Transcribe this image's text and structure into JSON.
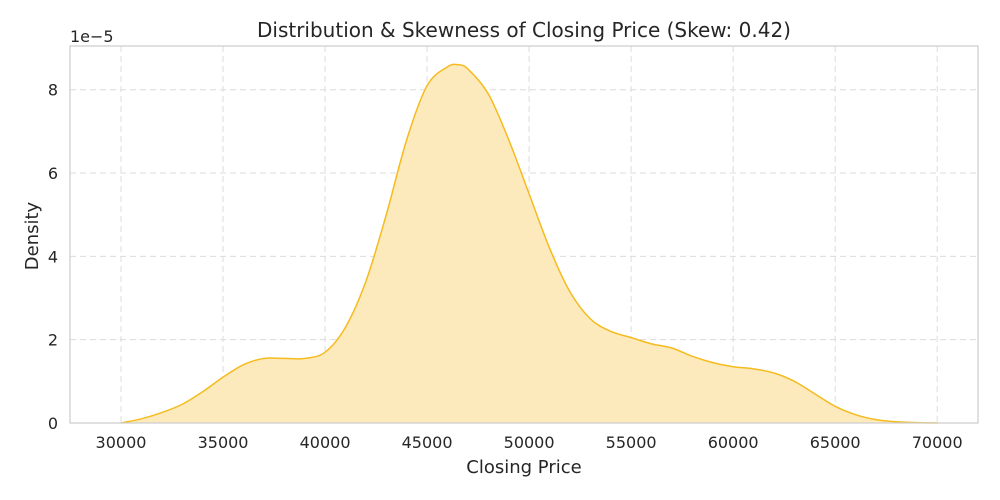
{
  "chart_data": {
    "type": "area",
    "title": "Distribution & Skewness of Closing Price (Skew: 0.42)",
    "xlabel": "Closing Price",
    "ylabel": "Density",
    "y_scale_label": "1e−5",
    "xlim": [
      27500,
      72000
    ],
    "ylim": [
      0,
      9.05e-05
    ],
    "x_ticks": [
      30000,
      35000,
      40000,
      45000,
      50000,
      55000,
      60000,
      65000,
      70000
    ],
    "x_tick_labels": [
      "30000",
      "35000",
      "40000",
      "45000",
      "50000",
      "55000",
      "60000",
      "65000",
      "70000"
    ],
    "y_ticks": [
      0,
      2e-05,
      4e-05,
      6e-05,
      8e-05
    ],
    "y_tick_labels": [
      "0",
      "2",
      "4",
      "6",
      "8"
    ],
    "grid": true,
    "colors": {
      "line": "#f5bb1e",
      "fill": "#fde9b8",
      "grid": "#dcdcdc",
      "frame": "#cccccc",
      "text": "#262626"
    },
    "series": [
      {
        "x": [
          30000,
          31000,
          32000,
          33000,
          34000,
          35000,
          36000,
          37000,
          38000,
          39000,
          40000,
          41000,
          42000,
          43000,
          44000,
          45000,
          46000,
          46500,
          47000,
          48000,
          49000,
          50000,
          51000,
          52000,
          53000,
          54000,
          55000,
          56000,
          57000,
          58000,
          59000,
          60000,
          61000,
          62000,
          63000,
          64000,
          65000,
          66000,
          67000,
          68000,
          69000,
          70000
        ],
        "y": [
          0.0,
          1e-06,
          2.5e-06,
          4.5e-06,
          7.5e-06,
          1.1e-05,
          1.4e-05,
          1.55e-05,
          1.55e-05,
          1.55e-05,
          1.7e-05,
          2.3e-05,
          3.4e-05,
          5e-05,
          6.8e-05,
          8.1e-05,
          8.55e-05,
          8.6e-05,
          8.5e-05,
          7.9e-05,
          6.8e-05,
          5.5e-05,
          4.2e-05,
          3.15e-05,
          2.5e-05,
          2.2e-05,
          2.05e-05,
          1.9e-05,
          1.8e-05,
          1.6e-05,
          1.45e-05,
          1.35e-05,
          1.3e-05,
          1.2e-05,
          1e-05,
          7e-06,
          4e-06,
          2e-06,
          8e-07,
          3e-07,
          1e-07,
          0.0
        ]
      }
    ]
  }
}
